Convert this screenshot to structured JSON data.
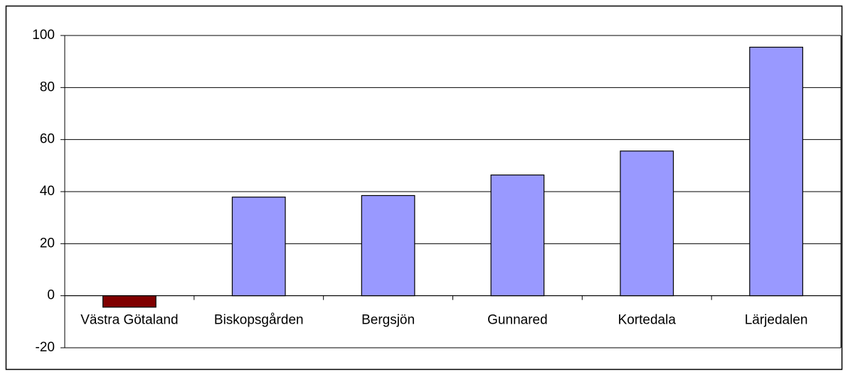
{
  "chart_data": {
    "type": "bar",
    "categories": [
      "Västra Götaland",
      "Biskopsgården",
      "Bergsjön",
      "Gunnared",
      "Kortedala",
      "Lärjedalen"
    ],
    "values": [
      -4.4,
      37.9,
      38.5,
      46.4,
      55.6,
      95.5
    ],
    "colors": [
      "#800000",
      "#9999ff",
      "#9999ff",
      "#9999ff",
      "#9999ff",
      "#9999ff"
    ],
    "ylim": [
      -20,
      100
    ],
    "yticks": [
      -20,
      0,
      20,
      40,
      60,
      80,
      100
    ],
    "grid": true
  }
}
